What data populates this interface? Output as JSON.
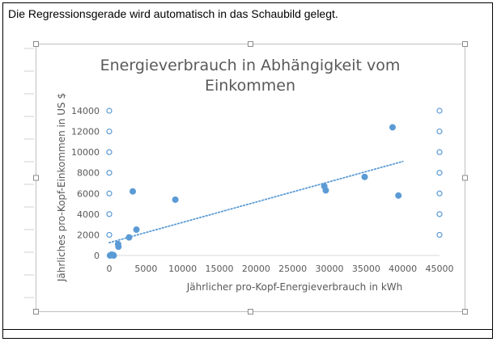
{
  "caption": "Die Regressionsgerade wird automatisch in das Schaubild gelegt.",
  "chart_data": {
    "type": "scatter",
    "title_line1": "Energieverbrauch in Abhängigkeit vom",
    "title_line2": "Einkommen",
    "xlabel": "Jährlicher pro-Kopf-Energieverbrauch in kWh",
    "ylabel": "Jährliches pro-Kopf-Einkommen in US $",
    "xlim": [
      0,
      45000
    ],
    "ylim": [
      0,
      14000
    ],
    "x_ticks": [
      0,
      5000,
      10000,
      15000,
      20000,
      25000,
      30000,
      35000,
      40000,
      45000
    ],
    "y_ticks": [
      0,
      2000,
      4000,
      6000,
      8000,
      10000,
      12000,
      14000
    ],
    "grid": false,
    "legend": "none",
    "trendline": "linear",
    "trendline_range": [
      0,
      40000
    ],
    "point_color": "#5b9bd5",
    "points": [
      {
        "x": 100,
        "y": 0
      },
      {
        "x": 300,
        "y": 80
      },
      {
        "x": 500,
        "y": 60
      },
      {
        "x": 600,
        "y": 0
      },
      {
        "x": 1200,
        "y": 1100
      },
      {
        "x": 1250,
        "y": 850
      },
      {
        "x": 2700,
        "y": 1750
      },
      {
        "x": 3200,
        "y": 6200
      },
      {
        "x": 3700,
        "y": 2500
      },
      {
        "x": 9000,
        "y": 5400
      },
      {
        "x": 29300,
        "y": 6700
      },
      {
        "x": 29500,
        "y": 6300
      },
      {
        "x": 34800,
        "y": 7600
      },
      {
        "x": 38600,
        "y": 12400
      },
      {
        "x": 39400,
        "y": 5800
      }
    ]
  }
}
